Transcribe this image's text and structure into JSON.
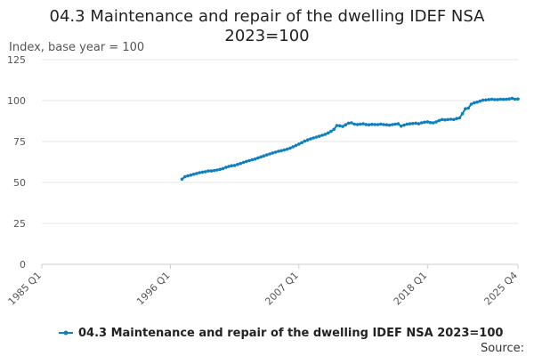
{
  "chart_data": {
    "type": "line",
    "title_lines": [
      "04.3 Maintenance and repair of the dwelling IDEF NSA",
      "2023=100"
    ],
    "ylabel": "Index, base year = 100",
    "ylim": [
      0,
      125
    ],
    "y_ticks": [
      0,
      25,
      50,
      75,
      100,
      125
    ],
    "x_ticks": [
      "1985 Q1",
      "1996 Q1",
      "2007 Q1",
      "2018 Q1",
      "2025 Q4"
    ],
    "x_tick_values": [
      1985.0,
      1996.0,
      2007.0,
      2018.0,
      2025.75
    ],
    "xlim": [
      1985.0,
      2025.75
    ],
    "grid": "horizontal",
    "legend_position": "bottom",
    "source_label": "Source:",
    "colors": {
      "series": "#0f7fbf",
      "grid": "#e6e6e6",
      "axis": "#cccccc"
    },
    "series": [
      {
        "name": "04.3 Maintenance and repair of the dwelling IDEF NSA 2023=100",
        "points": [
          [
            1997.0,
            52.0
          ],
          [
            1997.25,
            53.5
          ],
          [
            1997.5,
            54.0
          ],
          [
            1997.75,
            54.5
          ],
          [
            1998.0,
            55.0
          ],
          [
            1998.25,
            55.5
          ],
          [
            1998.5,
            56.0
          ],
          [
            1998.75,
            56.3
          ],
          [
            1999.0,
            56.6
          ],
          [
            1999.25,
            57.0
          ],
          [
            1999.5,
            57.0
          ],
          [
            1999.75,
            57.3
          ],
          [
            2000.0,
            57.6
          ],
          [
            2000.25,
            58.0
          ],
          [
            2000.5,
            58.5
          ],
          [
            2000.75,
            59.2
          ],
          [
            2001.0,
            59.8
          ],
          [
            2001.25,
            60.2
          ],
          [
            2001.5,
            60.4
          ],
          [
            2001.75,
            61.0
          ],
          [
            2002.0,
            61.6
          ],
          [
            2002.25,
            62.2
          ],
          [
            2002.5,
            62.8
          ],
          [
            2002.75,
            63.3
          ],
          [
            2003.0,
            63.8
          ],
          [
            2003.25,
            64.3
          ],
          [
            2003.5,
            65.0
          ],
          [
            2003.75,
            65.6
          ],
          [
            2004.0,
            66.2
          ],
          [
            2004.25,
            66.8
          ],
          [
            2004.5,
            67.4
          ],
          [
            2004.75,
            68.0
          ],
          [
            2005.0,
            68.5
          ],
          [
            2005.25,
            69.0
          ],
          [
            2005.5,
            69.4
          ],
          [
            2005.75,
            69.8
          ],
          [
            2006.0,
            70.3
          ],
          [
            2006.25,
            71.0
          ],
          [
            2006.5,
            71.8
          ],
          [
            2006.75,
            72.6
          ],
          [
            2007.0,
            73.4
          ],
          [
            2007.25,
            74.3
          ],
          [
            2007.5,
            75.2
          ],
          [
            2007.75,
            76.0
          ],
          [
            2008.0,
            76.6
          ],
          [
            2008.25,
            77.2
          ],
          [
            2008.5,
            77.7
          ],
          [
            2008.75,
            78.2
          ],
          [
            2009.0,
            78.8
          ],
          [
            2009.25,
            79.4
          ],
          [
            2009.5,
            80.2
          ],
          [
            2009.75,
            81.2
          ],
          [
            2010.0,
            82.4
          ],
          [
            2010.25,
            84.8
          ],
          [
            2010.5,
            84.6
          ],
          [
            2010.75,
            84.2
          ],
          [
            2011.0,
            85.2
          ],
          [
            2011.25,
            86.2
          ],
          [
            2011.5,
            86.4
          ],
          [
            2011.75,
            85.6
          ],
          [
            2012.0,
            85.4
          ],
          [
            2012.25,
            85.6
          ],
          [
            2012.5,
            85.8
          ],
          [
            2012.75,
            85.4
          ],
          [
            2013.0,
            85.2
          ],
          [
            2013.25,
            85.5
          ],
          [
            2013.5,
            85.4
          ],
          [
            2013.75,
            85.3
          ],
          [
            2014.0,
            85.6
          ],
          [
            2014.25,
            85.4
          ],
          [
            2014.5,
            85.2
          ],
          [
            2014.75,
            85.0
          ],
          [
            2015.0,
            85.3
          ],
          [
            2015.25,
            85.6
          ],
          [
            2015.5,
            85.8
          ],
          [
            2015.75,
            84.4
          ],
          [
            2016.0,
            85.0
          ],
          [
            2016.25,
            85.6
          ],
          [
            2016.5,
            85.8
          ],
          [
            2016.75,
            86.0
          ],
          [
            2017.0,
            86.2
          ],
          [
            2017.25,
            85.8
          ],
          [
            2017.5,
            86.4
          ],
          [
            2017.75,
            86.8
          ],
          [
            2018.0,
            87.0
          ],
          [
            2018.25,
            86.6
          ],
          [
            2018.5,
            86.4
          ],
          [
            2018.75,
            87.0
          ],
          [
            2019.0,
            87.8
          ],
          [
            2019.25,
            88.4
          ],
          [
            2019.5,
            88.2
          ],
          [
            2019.75,
            88.4
          ],
          [
            2020.0,
            88.6
          ],
          [
            2020.25,
            88.4
          ],
          [
            2020.5,
            89.0
          ],
          [
            2020.75,
            89.4
          ],
          [
            2021.0,
            92.0
          ],
          [
            2021.25,
            95.0
          ],
          [
            2021.5,
            95.4
          ],
          [
            2021.75,
            97.8
          ],
          [
            2022.0,
            98.6
          ],
          [
            2022.25,
            99.0
          ],
          [
            2022.5,
            99.6
          ],
          [
            2022.75,
            100.2
          ],
          [
            2023.0,
            100.4
          ],
          [
            2023.25,
            100.6
          ],
          [
            2023.5,
            100.8
          ],
          [
            2023.75,
            100.6
          ],
          [
            2024.0,
            100.6
          ],
          [
            2024.25,
            100.8
          ],
          [
            2024.5,
            100.7
          ],
          [
            2024.75,
            100.8
          ],
          [
            2025.0,
            101.0
          ],
          [
            2025.25,
            101.4
          ],
          [
            2025.5,
            100.8
          ],
          [
            2025.75,
            101.0
          ]
        ]
      }
    ]
  }
}
